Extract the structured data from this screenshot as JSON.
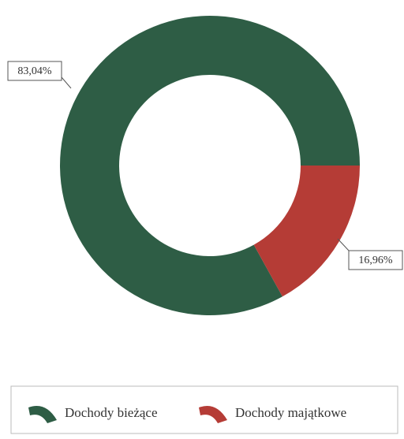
{
  "chart_data": {
    "type": "donut",
    "categories": [
      "Dochody bieżące",
      "Dochody majątkowe"
    ],
    "values": [
      83.04,
      16.96
    ],
    "value_labels": [
      "83,04%",
      "16,96%"
    ],
    "colors": [
      "#2e5d45",
      "#b53c36"
    ],
    "legend": "bottom"
  }
}
